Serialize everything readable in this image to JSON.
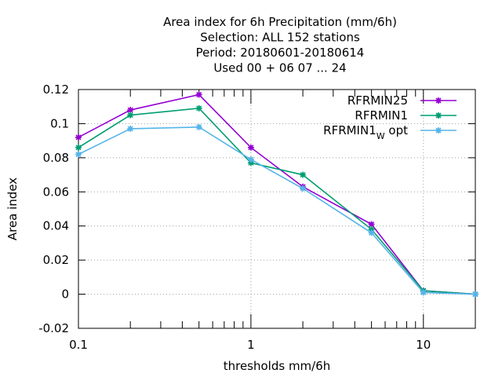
{
  "chart_data": {
    "type": "line",
    "title": [
      "Area index  for 6h Precipitation (mm/6h)",
      "Selection: ALL    152 stations",
      "Period: 20180601-20180614",
      "Used  00 + 06 07 ... 24"
    ],
    "xlabel": "thresholds mm/6h",
    "ylabel": "Area index",
    "x_scale": "log",
    "xlim": [
      0.1,
      20
    ],
    "ylim": [
      -0.02,
      0.12
    ],
    "x_ticks": [
      0.1,
      1,
      10
    ],
    "x_tick_labels": [
      "0.1",
      "1",
      "10"
    ],
    "y_ticks": [
      -0.02,
      0,
      0.02,
      0.04,
      0.06,
      0.08,
      0.1,
      0.12
    ],
    "y_tick_labels": [
      "-0.02",
      "0",
      "0.02",
      "0.04",
      "0.06",
      "0.08",
      "0.1",
      "0.12"
    ],
    "grid": true,
    "legend_position": "top-right",
    "x": [
      0.1,
      0.2,
      0.5,
      1,
      2,
      5,
      10,
      20
    ],
    "series": [
      {
        "name": "RFRMIN25",
        "color": "#9400d3",
        "values": [
          0.092,
          0.108,
          0.117,
          0.086,
          0.063,
          0.041,
          0.002,
          0.0
        ]
      },
      {
        "name": "RFRMIN1",
        "color": "#009e73",
        "values": [
          0.086,
          0.105,
          0.109,
          0.077,
          0.07,
          0.038,
          0.002,
          0.0
        ]
      },
      {
        "name": "RFRMIN1",
        "name_sub": "W",
        "name_suffix": " opt",
        "color": "#56b4e9",
        "values": [
          0.082,
          0.097,
          0.098,
          0.079,
          0.062,
          0.036,
          0.001,
          0.0
        ]
      }
    ]
  }
}
